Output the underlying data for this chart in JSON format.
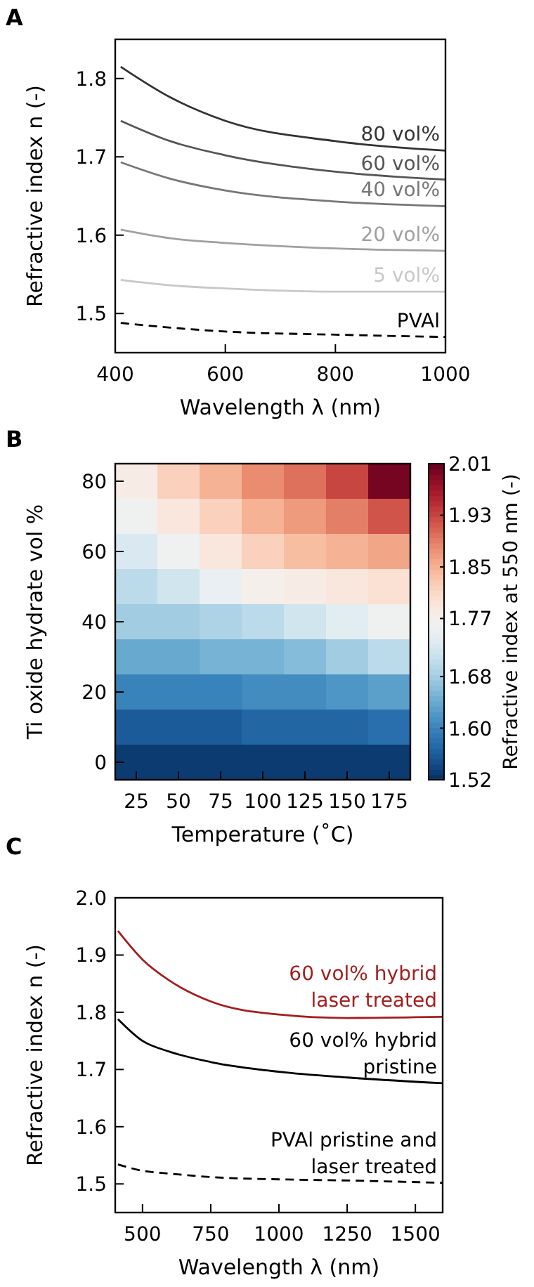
{
  "chart_data": [
    {
      "type": "line",
      "title": "A",
      "xlabel": "Wavelength λ (nm)",
      "ylabel": "Refractive index n (-)",
      "xlim": [
        400,
        1000
      ],
      "ylim": [
        1.45,
        1.85
      ],
      "xticks": [
        400,
        600,
        800,
        1000
      ],
      "yticks": [
        1.5,
        1.6,
        1.7,
        1.8
      ],
      "grid": false,
      "x": [
        410,
        500,
        600,
        800,
        1000
      ],
      "series": [
        {
          "name": "80 vol%",
          "color": "#333333",
          "values": [
            1.815,
            1.776,
            1.746,
            1.72,
            1.708
          ]
        },
        {
          "name": "60 vol%",
          "color": "#555555",
          "values": [
            1.746,
            1.72,
            1.702,
            1.681,
            1.671
          ]
        },
        {
          "name": "40 vol%",
          "color": "#777777",
          "values": [
            1.693,
            1.672,
            1.657,
            1.643,
            1.637
          ]
        },
        {
          "name": "20 vol%",
          "color": "#a0a0a0",
          "values": [
            1.607,
            1.596,
            1.59,
            1.583,
            1.58
          ]
        },
        {
          "name": "5 vol%",
          "color": "#c8c8c8",
          "values": [
            1.543,
            1.536,
            1.532,
            1.528,
            1.528
          ]
        },
        {
          "name": "PVAl",
          "color": "#000000",
          "line_style": "dashed",
          "values": [
            1.488,
            1.482,
            1.477,
            1.473,
            1.47
          ]
        }
      ]
    },
    {
      "type": "heatmap",
      "title": "B",
      "xlabel": "Temperature (˚C)",
      "ylabel": "Ti oxide hydrate vol %",
      "clabel": "Refractive index at 550 nm (-)",
      "categories": [
        "25",
        "50",
        "75",
        "100",
        "125",
        "150",
        "175"
      ],
      "y_categories": [
        "80",
        null,
        "60",
        null,
        "40",
        null,
        "20",
        null,
        "0"
      ],
      "clim": [
        1.52,
        2.01
      ],
      "cticks": [
        1.52,
        {
          "value": 1.6,
          "label": "1.60"
        },
        1.68,
        1.77,
        1.85,
        1.93,
        2.01
      ],
      "cells": [
        [
          1.78,
          1.82,
          1.85,
          1.88,
          1.9,
          1.93,
          2.0
        ],
        [
          1.76,
          1.79,
          1.82,
          1.85,
          1.87,
          1.89,
          1.92
        ],
        [
          1.73,
          1.76,
          1.79,
          1.82,
          1.84,
          1.85,
          1.86
        ],
        [
          1.7,
          1.72,
          1.75,
          1.77,
          1.78,
          1.79,
          1.8
        ],
        [
          1.68,
          1.68,
          1.69,
          1.7,
          1.72,
          1.74,
          1.76
        ],
        [
          1.64,
          1.64,
          1.65,
          1.65,
          1.66,
          1.68,
          1.7
        ],
        [
          1.6,
          1.6,
          1.6,
          1.61,
          1.61,
          1.62,
          1.63
        ],
        [
          1.56,
          1.56,
          1.56,
          1.57,
          1.57,
          1.57,
          1.58
        ],
        [
          1.53,
          1.53,
          1.53,
          1.53,
          1.53,
          1.53,
          1.53
        ]
      ]
    },
    {
      "type": "line",
      "title": "C",
      "xlabel": "Wavelength λ (nm)",
      "ylabel": "Refractive index n (-)",
      "xlim": [
        400,
        1600
      ],
      "ylim": [
        1.45,
        2.0
      ],
      "xticks": [
        500,
        750,
        1000,
        1250,
        1500
      ],
      "yticks": [
        1.5,
        1.6,
        1.7,
        1.8,
        1.9,
        {
          "value": 2,
          "label": "2.0"
        }
      ],
      "grid": false,
      "x": [
        410,
        500,
        600,
        750,
        1000,
        1250,
        1600
      ],
      "series": [
        {
          "name": "60 vol% hybrid\nlaser treated",
          "color": "#a31f1f",
          "values": [
            1.942,
            1.892,
            1.855,
            1.819,
            1.796,
            1.79,
            1.792
          ]
        },
        {
          "name": "60 vol% hybrid\npristine",
          "color": "#000000",
          "values": [
            1.788,
            1.75,
            1.731,
            1.713,
            1.696,
            1.686,
            1.676
          ]
        },
        {
          "name": "PVAl pristine and\nlaser treated",
          "color": "#000000",
          "line_style": "dashed",
          "values": [
            1.534,
            1.523,
            1.518,
            1.512,
            1.508,
            1.506,
            1.502
          ]
        }
      ]
    }
  ]
}
